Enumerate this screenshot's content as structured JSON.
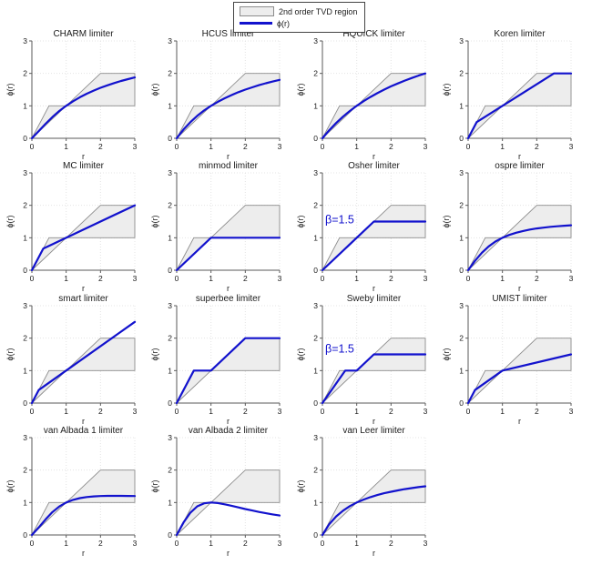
{
  "legend": {
    "region_label": "2nd order TVD region",
    "phi_label": "ϕ(r)"
  },
  "colors": {
    "curve": "#1212cd",
    "region_fill": "#ededed",
    "region_edge": "#8c8c8c",
    "axis": "#5a5a5a",
    "grid": "#e4e4e4",
    "text": "#1a1a1a",
    "annotation": "#1212cd"
  },
  "chart_data": {
    "type": "line",
    "title": "",
    "xlabel": "r",
    "ylabel": "ϕ(r)",
    "xlim": [
      0,
      3
    ],
    "ylim": [
      0,
      3
    ],
    "xticks": [
      0,
      1,
      2,
      3
    ],
    "yticks": [
      0,
      1,
      2,
      3
    ],
    "grid": true,
    "legend_position": "top-center",
    "tvd_region": [
      [
        0,
        0
      ],
      [
        0.5,
        1
      ],
      [
        1,
        1
      ],
      [
        2,
        2
      ],
      [
        3,
        2
      ],
      [
        3,
        1
      ],
      [
        1,
        1
      ]
    ],
    "subplots": [
      {
        "title": "CHARM limiter",
        "points": [
          [
            0,
            0
          ],
          [
            0.2,
            0.222
          ],
          [
            0.4,
            0.449
          ],
          [
            0.6,
            0.656
          ],
          [
            0.8,
            0.84
          ],
          [
            1,
            1
          ],
          [
            1.2,
            1.14
          ],
          [
            1.4,
            1.264
          ],
          [
            1.6,
            1.373
          ],
          [
            1.8,
            1.469
          ],
          [
            2,
            1.556
          ],
          [
            2.2,
            1.633
          ],
          [
            2.4,
            1.702
          ],
          [
            2.6,
            1.765
          ],
          [
            2.8,
            1.823
          ],
          [
            3,
            1.875
          ]
        ]
      },
      {
        "title": "HCUS limiter",
        "points": [
          [
            0,
            0
          ],
          [
            0.2,
            0.273
          ],
          [
            0.4,
            0.5
          ],
          [
            0.6,
            0.692
          ],
          [
            0.8,
            0.857
          ],
          [
            1,
            1
          ],
          [
            1.2,
            1.125
          ],
          [
            1.4,
            1.235
          ],
          [
            1.6,
            1.333
          ],
          [
            1.8,
            1.421
          ],
          [
            2,
            1.5
          ],
          [
            2.2,
            1.571
          ],
          [
            2.4,
            1.636
          ],
          [
            2.6,
            1.696
          ],
          [
            2.8,
            1.75
          ],
          [
            3,
            1.8
          ]
        ]
      },
      {
        "title": "HQUICK limiter",
        "points": [
          [
            0,
            0
          ],
          [
            0.2,
            0.25
          ],
          [
            0.4,
            0.471
          ],
          [
            0.6,
            0.667
          ],
          [
            0.8,
            0.842
          ],
          [
            1,
            1
          ],
          [
            1.2,
            1.143
          ],
          [
            1.4,
            1.273
          ],
          [
            1.6,
            1.391
          ],
          [
            1.8,
            1.5
          ],
          [
            2,
            1.6
          ],
          [
            2.2,
            1.692
          ],
          [
            2.4,
            1.778
          ],
          [
            2.6,
            1.857
          ],
          [
            2.8,
            1.931
          ],
          [
            3,
            2
          ]
        ]
      },
      {
        "title": "Koren limiter",
        "points": [
          [
            0,
            0
          ],
          [
            0.25,
            0.5
          ],
          [
            2.5,
            2
          ],
          [
            3,
            2
          ]
        ]
      },
      {
        "title": "MC limiter",
        "points": [
          [
            0,
            0
          ],
          [
            0.333,
            0.667
          ],
          [
            3,
            2
          ]
        ]
      },
      {
        "title": "minmod limiter",
        "points": [
          [
            0,
            0
          ],
          [
            1,
            1
          ],
          [
            3,
            1
          ]
        ]
      },
      {
        "title": "Osher limiter",
        "annotation": {
          "text": "β=1.5",
          "x": 0.08,
          "y": 1.45
        },
        "points": [
          [
            0,
            0
          ],
          [
            1.5,
            1.5
          ],
          [
            3,
            1.5
          ]
        ]
      },
      {
        "title": "ospre limiter",
        "points": [
          [
            0,
            0
          ],
          [
            0.2,
            0.29
          ],
          [
            0.4,
            0.538
          ],
          [
            0.6,
            0.735
          ],
          [
            0.8,
            0.885
          ],
          [
            1,
            1
          ],
          [
            1.2,
            1.088
          ],
          [
            1.4,
            1.156
          ],
          [
            1.6,
            1.209
          ],
          [
            1.8,
            1.252
          ],
          [
            2,
            1.286
          ],
          [
            2.2,
            1.313
          ],
          [
            2.4,
            1.336
          ],
          [
            2.6,
            1.355
          ],
          [
            2.8,
            1.371
          ],
          [
            3,
            1.385
          ]
        ]
      },
      {
        "title": "smart limiter",
        "points": [
          [
            0,
            0
          ],
          [
            0.2,
            0.4
          ],
          [
            3,
            2.5
          ]
        ]
      },
      {
        "title": "superbee limiter",
        "points": [
          [
            0,
            0
          ],
          [
            0.5,
            1
          ],
          [
            1,
            1
          ],
          [
            2,
            2
          ],
          [
            3,
            2
          ]
        ]
      },
      {
        "title": "Sweby limiter",
        "annotation": {
          "text": "β=1.5",
          "x": 0.08,
          "y": 1.55
        },
        "points": [
          [
            0,
            0
          ],
          [
            0.667,
            1
          ],
          [
            1,
            1
          ],
          [
            1.5,
            1.5
          ],
          [
            3,
            1.5
          ]
        ]
      },
      {
        "title": "UMIST limiter",
        "points": [
          [
            0,
            0
          ],
          [
            0.2,
            0.4
          ],
          [
            1,
            1
          ],
          [
            3,
            1.5
          ]
        ]
      },
      {
        "title": "van Albada 1 limiter",
        "points": [
          [
            0,
            0
          ],
          [
            0.2,
            0.231
          ],
          [
            0.4,
            0.483
          ],
          [
            0.6,
            0.706
          ],
          [
            0.8,
            0.878
          ],
          [
            1,
            1
          ],
          [
            1.2,
            1.082
          ],
          [
            1.4,
            1.135
          ],
          [
            1.6,
            1.169
          ],
          [
            1.8,
            1.189
          ],
          [
            2,
            1.2
          ],
          [
            2.2,
            1.205
          ],
          [
            2.4,
            1.207
          ],
          [
            2.6,
            1.206
          ],
          [
            2.8,
            1.204
          ],
          [
            3,
            1.2
          ]
        ]
      },
      {
        "title": "van Albada 2 limiter",
        "points": [
          [
            0,
            0
          ],
          [
            0.2,
            0.385
          ],
          [
            0.4,
            0.69
          ],
          [
            0.6,
            0.882
          ],
          [
            0.8,
            0.976
          ],
          [
            1,
            1
          ],
          [
            1.2,
            0.984
          ],
          [
            1.4,
            0.946
          ],
          [
            1.6,
            0.899
          ],
          [
            1.8,
            0.849
          ],
          [
            2,
            0.8
          ],
          [
            2.2,
            0.753
          ],
          [
            2.4,
            0.71
          ],
          [
            2.6,
            0.67
          ],
          [
            2.8,
            0.633
          ],
          [
            3,
            0.6
          ]
        ]
      },
      {
        "title": "van Leer limiter",
        "points": [
          [
            0,
            0
          ],
          [
            0.2,
            0.333
          ],
          [
            0.4,
            0.571
          ],
          [
            0.6,
            0.75
          ],
          [
            0.8,
            0.889
          ],
          [
            1,
            1
          ],
          [
            1.2,
            1.091
          ],
          [
            1.4,
            1.167
          ],
          [
            1.6,
            1.231
          ],
          [
            1.8,
            1.286
          ],
          [
            2,
            1.333
          ],
          [
            2.2,
            1.375
          ],
          [
            2.4,
            1.412
          ],
          [
            2.6,
            1.444
          ],
          [
            2.8,
            1.474
          ],
          [
            3,
            1.5
          ]
        ]
      }
    ]
  }
}
